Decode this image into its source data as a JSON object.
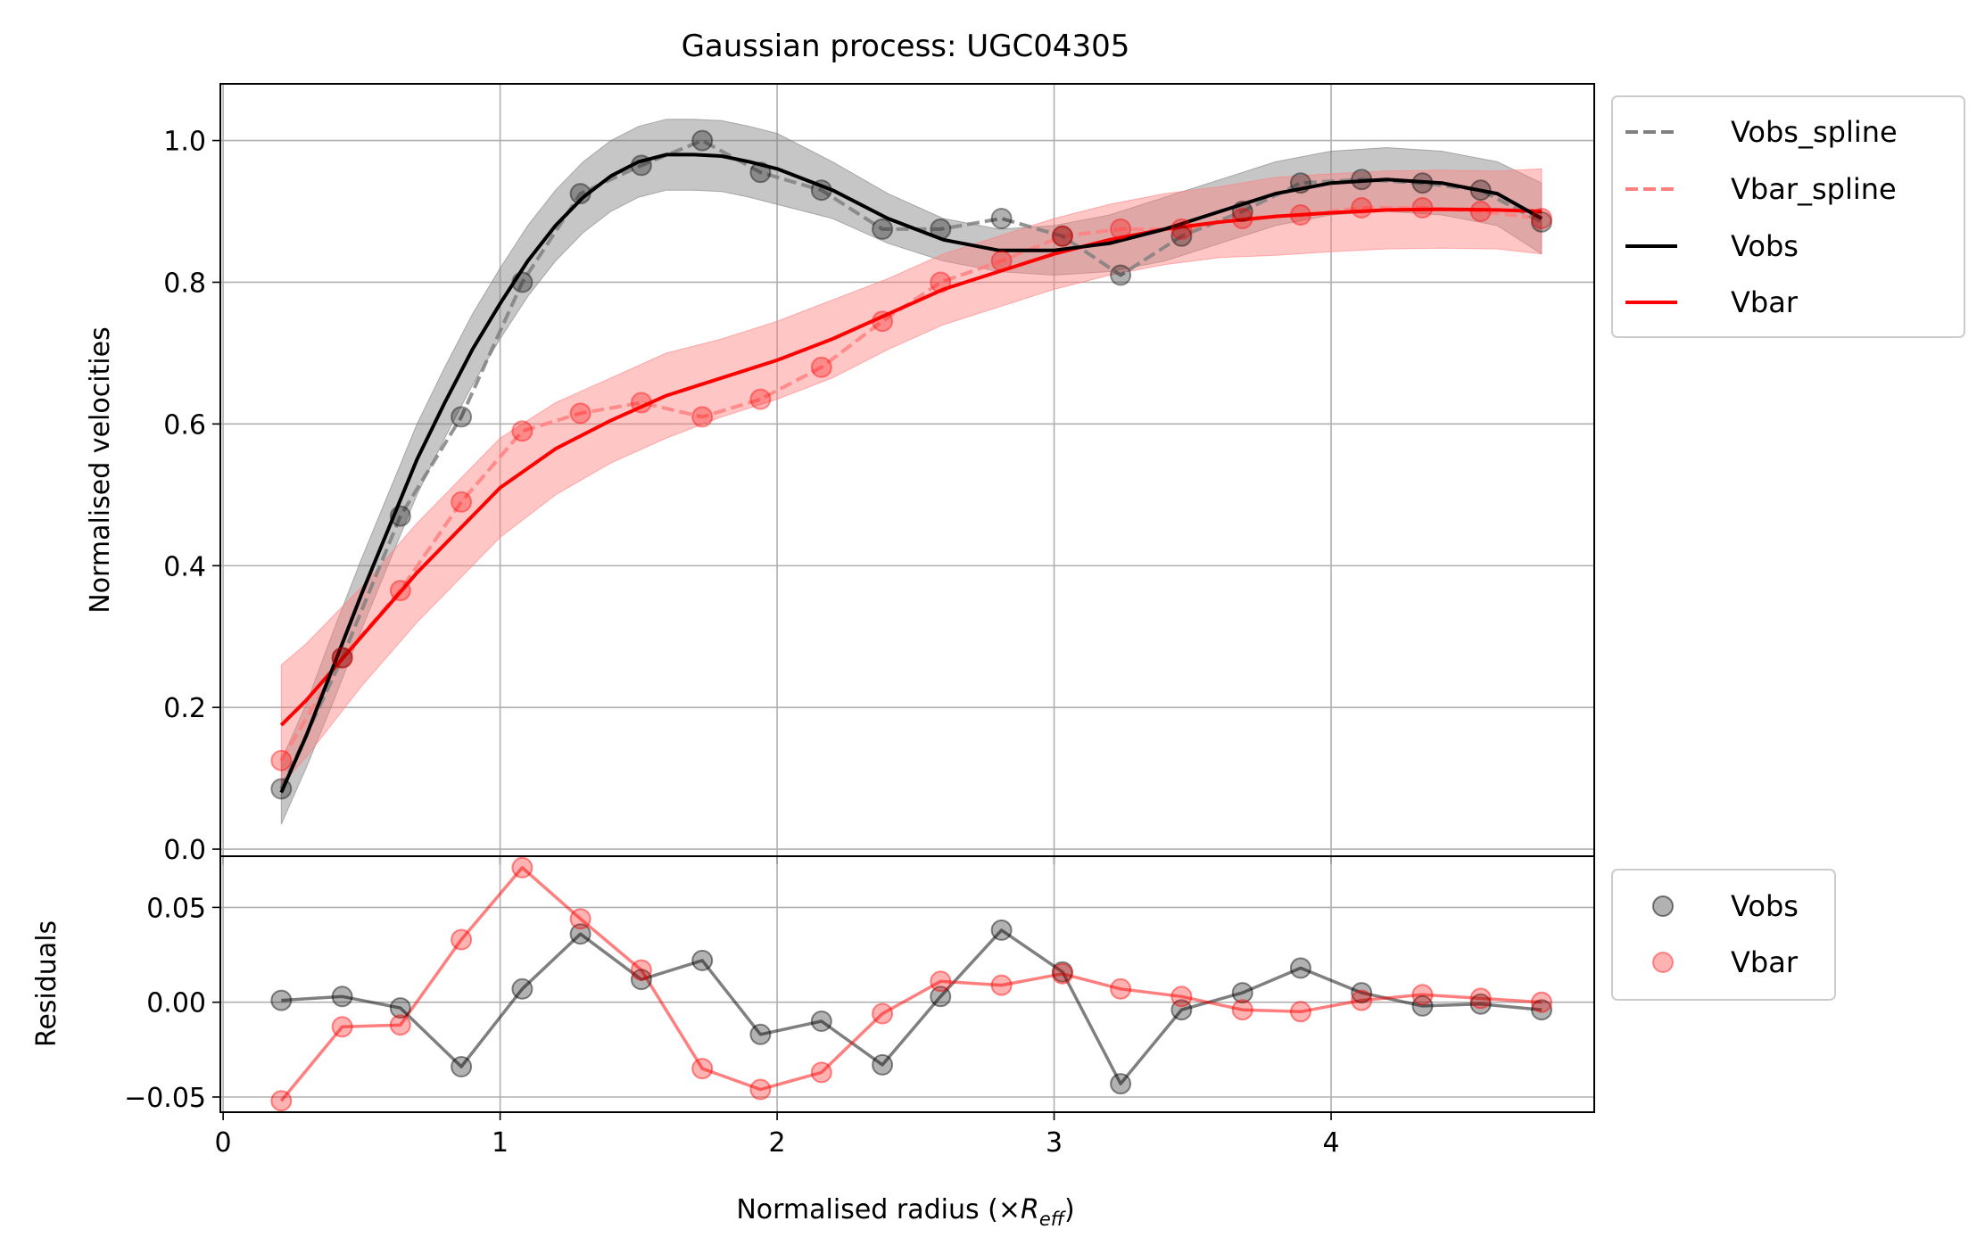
{
  "chart_data": [
    {
      "type": "line",
      "title": "Gaussian process: UGC04305",
      "xlabel": "",
      "ylabel": "Normalised velocities",
      "xlim": [
        -0.01,
        4.95
      ],
      "ylim": [
        -0.01,
        1.08
      ],
      "xticks": [
        0,
        1,
        2,
        3,
        4
      ],
      "yticks": [
        0.0,
        0.2,
        0.4,
        0.6,
        0.8,
        1.0
      ],
      "ytick_labels": [
        "0.0",
        "0.2",
        "0.4",
        "0.6",
        "0.8",
        "1.0"
      ],
      "grid": true,
      "legend": {
        "placement": "outside upper right",
        "entries": [
          "Vobs_spline",
          "Vbar_spline",
          "Vobs",
          "Vbar"
        ]
      },
      "x": [
        0.21,
        0.43,
        0.64,
        0.86,
        1.08,
        1.29,
        1.51,
        1.73,
        1.94,
        2.16,
        2.38,
        2.59,
        2.81,
        3.03,
        3.24,
        3.46,
        3.68,
        3.89,
        4.11,
        4.33,
        4.54,
        4.76
      ],
      "series": [
        {
          "name": "Vobs_spline",
          "style": "dashed",
          "color": "#808080",
          "markers": true,
          "values": [
            0.085,
            0.27,
            0.47,
            0.61,
            0.8,
            0.925,
            0.965,
            1.0,
            0.955,
            0.93,
            0.875,
            0.875,
            0.89,
            0.865,
            0.81,
            0.865,
            0.9,
            0.94,
            0.945,
            0.94,
            0.93,
            0.885
          ]
        },
        {
          "name": "Vbar_spline",
          "style": "dashed",
          "color": "#ff8080",
          "markers": true,
          "values": [
            0.125,
            0.27,
            0.365,
            0.49,
            0.59,
            0.615,
            0.63,
            0.61,
            0.635,
            0.68,
            0.745,
            0.8,
            0.83,
            0.865,
            0.875,
            0.875,
            0.89,
            0.895,
            0.905,
            0.905,
            0.9,
            0.89
          ]
        },
        {
          "name": "Vobs",
          "style": "solid",
          "color": "#000000",
          "x": [
            0.21,
            0.3,
            0.4,
            0.5,
            0.6,
            0.7,
            0.8,
            0.9,
            1.0,
            1.1,
            1.2,
            1.3,
            1.4,
            1.5,
            1.6,
            1.7,
            1.8,
            1.9,
            2.0,
            2.2,
            2.4,
            2.6,
            2.8,
            3.0,
            3.2,
            3.4,
            3.6,
            3.8,
            4.0,
            4.2,
            4.4,
            4.6,
            4.76
          ],
          "values": [
            0.08,
            0.16,
            0.26,
            0.36,
            0.455,
            0.55,
            0.63,
            0.705,
            0.77,
            0.83,
            0.88,
            0.92,
            0.95,
            0.97,
            0.98,
            0.98,
            0.978,
            0.97,
            0.96,
            0.93,
            0.89,
            0.86,
            0.845,
            0.845,
            0.855,
            0.875,
            0.9,
            0.925,
            0.94,
            0.945,
            0.94,
            0.925,
            0.89
          ]
        },
        {
          "name": "Vbar",
          "style": "solid",
          "color": "#ff0000",
          "x": [
            0.21,
            0.3,
            0.4,
            0.5,
            0.6,
            0.7,
            0.8,
            0.9,
            1.0,
            1.2,
            1.4,
            1.6,
            1.8,
            2.0,
            2.2,
            2.4,
            2.6,
            2.8,
            3.0,
            3.2,
            3.4,
            3.6,
            3.8,
            4.0,
            4.2,
            4.4,
            4.6,
            4.76
          ],
          "values": [
            0.175,
            0.21,
            0.255,
            0.3,
            0.345,
            0.39,
            0.43,
            0.47,
            0.51,
            0.565,
            0.605,
            0.64,
            0.665,
            0.69,
            0.72,
            0.755,
            0.79,
            0.815,
            0.84,
            0.86,
            0.875,
            0.885,
            0.893,
            0.898,
            0.902,
            0.903,
            0.902,
            0.9
          ]
        }
      ],
      "bands": [
        {
          "of": "Vobs",
          "color": "#808080",
          "halfwidth": [
            0.045,
            0.045,
            0.05,
            0.05,
            0.05,
            0.05,
            0.05,
            0.05,
            0.05,
            0.05,
            0.05,
            0.05,
            0.05,
            0.05,
            0.05,
            0.05,
            0.05,
            0.05,
            0.05,
            0.04,
            0.035,
            0.03,
            0.03,
            0.035,
            0.04,
            0.045,
            0.045,
            0.045,
            0.045,
            0.045,
            0.045,
            0.045,
            0.05
          ]
        },
        {
          "of": "Vbar",
          "color": "#ff8080",
          "halfwidth": [
            0.085,
            0.08,
            0.075,
            0.07,
            0.07,
            0.07,
            0.07,
            0.07,
            0.07,
            0.065,
            0.06,
            0.06,
            0.055,
            0.055,
            0.055,
            0.05,
            0.05,
            0.05,
            0.05,
            0.05,
            0.05,
            0.05,
            0.055,
            0.055,
            0.055,
            0.055,
            0.055,
            0.06
          ]
        }
      ]
    },
    {
      "type": "line",
      "title": "",
      "xlabel": "Normalised radius (×R_eff)",
      "xlabel_main": "Normalised radius (×",
      "xlabel_var": "R",
      "xlabel_sub": "eff",
      "xlabel_close": ")",
      "ylabel": "Residuals",
      "xlim": [
        -0.01,
        4.95
      ],
      "ylim": [
        -0.058,
        0.077
      ],
      "xticks": [
        0,
        1,
        2,
        3,
        4
      ],
      "xtick_labels": [
        "0",
        "1",
        "2",
        "3",
        "4"
      ],
      "yticks": [
        -0.05,
        0.0,
        0.05
      ],
      "ytick_labels": [
        "−0.05",
        "0.00",
        "0.05"
      ],
      "grid": true,
      "legend": {
        "placement": "outside upper right",
        "entries": [
          "Vobs",
          "Vbar"
        ]
      },
      "x": [
        0.21,
        0.43,
        0.64,
        0.86,
        1.08,
        1.29,
        1.51,
        1.73,
        1.94,
        2.16,
        2.38,
        2.59,
        2.81,
        3.03,
        3.24,
        3.46,
        3.68,
        3.89,
        4.11,
        4.33,
        4.54,
        4.76
      ],
      "series": [
        {
          "name": "Vobs",
          "color": "#000000",
          "markers": true,
          "values": [
            0.001,
            0.003,
            -0.003,
            -0.034,
            0.007,
            0.036,
            0.012,
            0.022,
            -0.017,
            -0.01,
            -0.033,
            0.003,
            0.038,
            0.016,
            -0.043,
            -0.004,
            0.005,
            0.018,
            0.005,
            -0.002,
            -0.001,
            -0.004
          ]
        },
        {
          "name": "Vbar",
          "color": "#ff0000",
          "markers": true,
          "values": [
            -0.052,
            -0.013,
            -0.012,
            0.033,
            0.071,
            0.044,
            0.017,
            -0.035,
            -0.046,
            -0.037,
            -0.006,
            0.011,
            0.009,
            0.015,
            0.007,
            0.003,
            -0.004,
            -0.005,
            0.001,
            0.004,
            0.002,
            0.0
          ]
        }
      ]
    }
  ]
}
